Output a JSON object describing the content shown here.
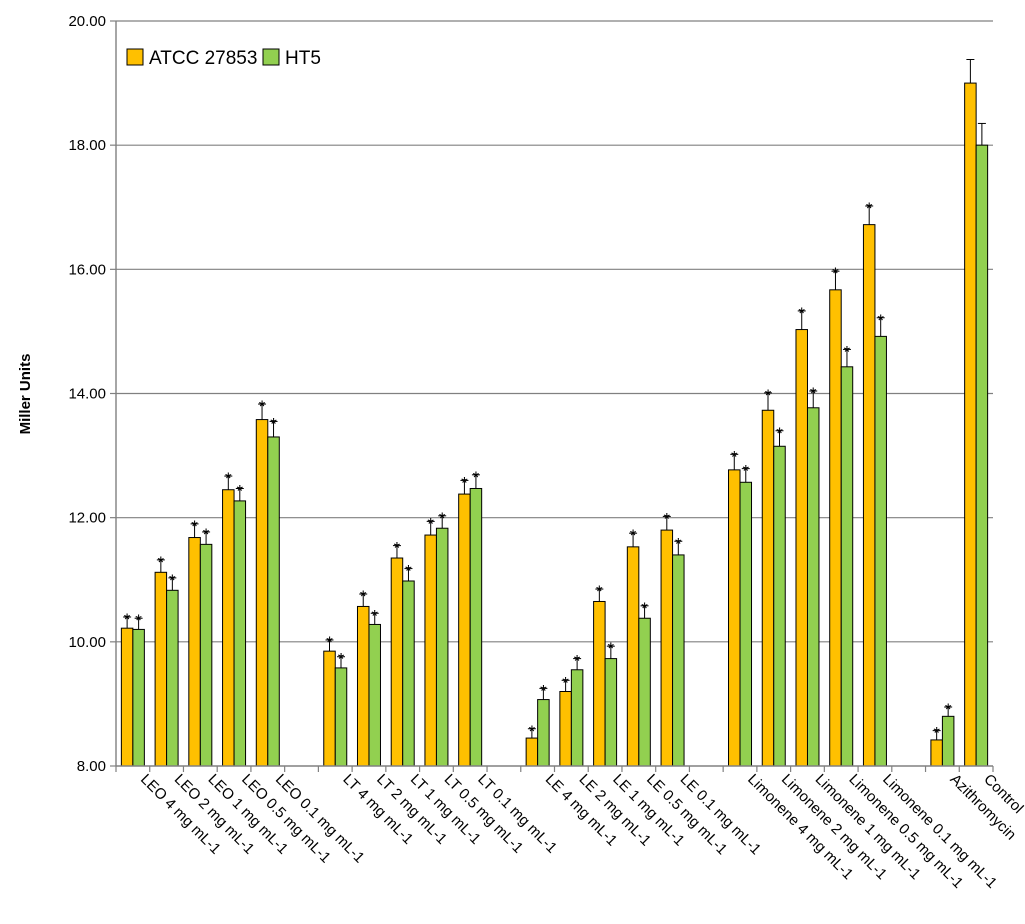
{
  "chart_data": {
    "type": "bar",
    "title": "",
    "xlabel": "",
    "ylabel": "Miller Units",
    "ylim": [
      8,
      20
    ],
    "yticks": [
      "8.00",
      "10.00",
      "12.00",
      "14.00",
      "16.00",
      "18.00",
      "20.00"
    ],
    "grid": "horizontal",
    "legend_position": "top-left",
    "colors": {
      "ATCC 27853": "#FFC000",
      "HT5": "#92D050",
      "edge": "#000000",
      "grid": "#808080"
    },
    "categories": [
      "LEO 4 mg mL-1",
      "LEO 2 mg mL-1",
      "LEO 1 mg mL-1",
      "LEO 0.5 mg mL-1",
      "LEO 0.1 mg mL-1",
      "LT 4 mg mL-1",
      "LT 2 mg mL-1",
      "LT 1 mg mL-1",
      "LT 0.5 mg mL-1",
      "LT 0.1 mg mL-1",
      "LE 4 mg mL-1",
      "LE 2 mg mL-1",
      "LE 1 mg mL-1",
      "LE 0.5 mg mL-1",
      "LE 0.1 mg mL-1",
      "Limonene 4 mg mL-1",
      "Limonene 2 mg mL-1",
      "Limonene 1 mg mL-1",
      "Limonene 0.5 mg mL-1",
      "Limonene 0.1 mg mL-1",
      "Azithromycin",
      "Control"
    ],
    "significance_marker": "*",
    "series": [
      {
        "name": "ATCC 27853",
        "values": [
          10.22,
          11.12,
          11.68,
          12.45,
          13.58,
          9.85,
          10.57,
          11.35,
          11.72,
          12.38,
          8.45,
          9.2,
          10.65,
          11.53,
          11.8,
          12.77,
          13.73,
          15.03,
          15.67,
          16.72,
          8.42,
          19.0
        ],
        "errors": [
          0.18,
          0.2,
          0.22,
          0.22,
          0.25,
          0.18,
          0.2,
          0.2,
          0.22,
          0.22,
          0.15,
          0.18,
          0.2,
          0.22,
          0.22,
          0.25,
          0.28,
          0.3,
          0.3,
          0.3,
          0.15,
          0.38
        ],
        "significant": [
          true,
          true,
          true,
          true,
          true,
          true,
          true,
          true,
          true,
          true,
          true,
          true,
          true,
          true,
          true,
          true,
          true,
          true,
          true,
          true,
          true,
          false
        ]
      },
      {
        "name": "HT5",
        "values": [
          10.2,
          10.83,
          11.57,
          12.27,
          13.3,
          9.58,
          10.28,
          10.98,
          11.83,
          12.47,
          9.07,
          9.55,
          9.73,
          10.38,
          11.4,
          12.57,
          13.15,
          13.77,
          14.43,
          14.92,
          8.8,
          18.0
        ],
        "errors": [
          0.18,
          0.2,
          0.2,
          0.2,
          0.25,
          0.18,
          0.18,
          0.2,
          0.2,
          0.22,
          0.18,
          0.18,
          0.2,
          0.2,
          0.22,
          0.22,
          0.25,
          0.27,
          0.28,
          0.3,
          0.15,
          0.35
        ],
        "significant": [
          true,
          true,
          true,
          true,
          true,
          true,
          true,
          true,
          true,
          true,
          true,
          true,
          true,
          true,
          true,
          true,
          true,
          true,
          true,
          true,
          true,
          false
        ]
      }
    ]
  }
}
